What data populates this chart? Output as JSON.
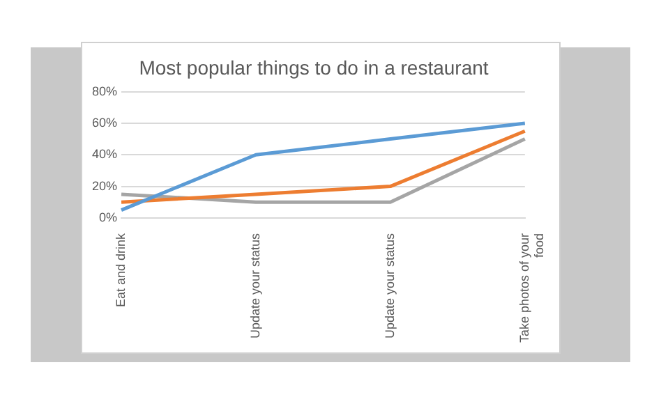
{
  "chart_data": {
    "type": "line",
    "title": "Most popular things to do in a restaurant",
    "categories": [
      "Eat and drink",
      "Update your status",
      "Update your status",
      "Take photos of your food"
    ],
    "series": [
      {
        "color": "#5b9bd5",
        "values": [
          5,
          40,
          50,
          60
        ]
      },
      {
        "color": "#ed7d31",
        "values": [
          10,
          15,
          20,
          55
        ]
      },
      {
        "color": "#a5a5a5",
        "values": [
          15,
          10,
          10,
          50
        ]
      }
    ],
    "ylim": [
      0,
      80
    ],
    "yticks": [
      {
        "value": 0,
        "label": "0%"
      },
      {
        "value": 20,
        "label": "20%"
      },
      {
        "value": 40,
        "label": "40%"
      },
      {
        "value": 60,
        "label": "60%"
      },
      {
        "value": 80,
        "label": "80%"
      }
    ],
    "grid": "y",
    "legend": false
  }
}
